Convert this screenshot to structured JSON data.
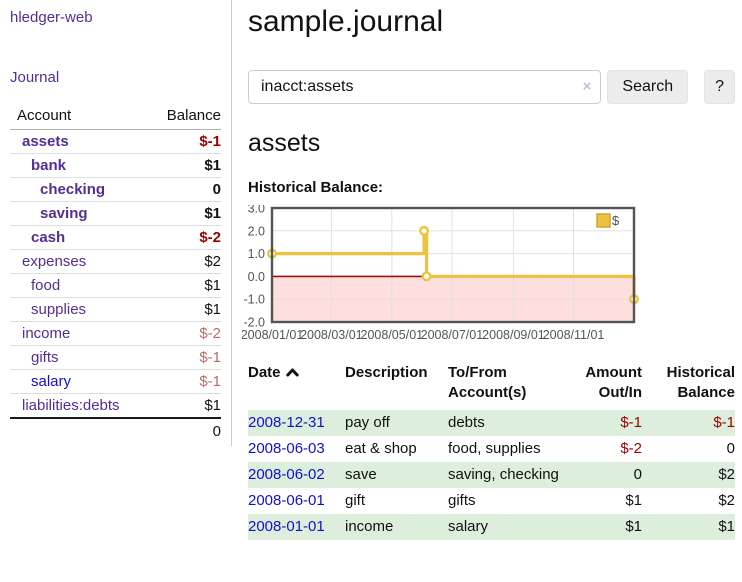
{
  "app": {
    "brand": "hledger-web",
    "nav_journal": "Journal"
  },
  "colors": {
    "link_purple": "#552e91",
    "link_blue": "#1111cc",
    "negative_strong": "#990000",
    "negative_soft": "#b86b6b",
    "row_highlight_green": "#ddeedd",
    "chart_line_yellow": "#edc240",
    "chart_negative_fill": "#ffdede",
    "chart_zero_line": "#990000"
  },
  "sidebar": {
    "headers": {
      "account": "Account",
      "balance": "Balance"
    },
    "accounts": [
      {
        "name": "assets",
        "balance": "$-1"
      },
      {
        "name": "bank",
        "balance": "$1"
      },
      {
        "name": "checking",
        "balance": "0"
      },
      {
        "name": "saving",
        "balance": "$1"
      },
      {
        "name": "cash",
        "balance": "$-2"
      },
      {
        "name": "expenses",
        "balance": "$2"
      },
      {
        "name": "food",
        "balance": "$1"
      },
      {
        "name": "supplies",
        "balance": "$1"
      },
      {
        "name": "income",
        "balance": "$-2"
      },
      {
        "name": "gifts",
        "balance": "$-1"
      },
      {
        "name": "salary",
        "balance": "$-1"
      },
      {
        "name": "liabilities:debts",
        "balance": "$1"
      }
    ],
    "total": "0"
  },
  "header": {
    "title": "sample.journal"
  },
  "search": {
    "value": "inacct:assets",
    "clear_icon": "×",
    "button": "Search",
    "help_button": "?"
  },
  "account_page": {
    "heading": "assets",
    "chart_label": "Historical Balance:"
  },
  "chart_data": {
    "type": "line",
    "title": "Historical Balance:",
    "ylim": [
      -2,
      3
    ],
    "grid": true,
    "legend_position": "top-right",
    "border_color": "#545454",
    "negative_region_color": "#ffdede",
    "zero_line_color": "#991111",
    "y_ticks": [
      {
        "label": "3.0",
        "v": 3
      },
      {
        "label": "2.0",
        "v": 2
      },
      {
        "label": "1.0",
        "v": 1
      },
      {
        "label": "0.0",
        "v": 0
      },
      {
        "label": "-1.0",
        "v": -1
      },
      {
        "label": "-2.0",
        "v": -2
      }
    ],
    "x_ticks": [
      {
        "label": "2008/01/01",
        "pos": 0.0
      },
      {
        "label": "2008/03/01",
        "pos": 0.164
      },
      {
        "label": "2008/05/01",
        "pos": 0.331
      },
      {
        "label": "2008/07/01",
        "pos": 0.497
      },
      {
        "label": "2008/09/01",
        "pos": 0.667
      },
      {
        "label": "2008/11/01",
        "pos": 0.833
      }
    ],
    "series": [
      {
        "name": "$",
        "color": "#edc240",
        "step": true,
        "points": [
          {
            "date": "2008-01-01",
            "x": 0.0,
            "y": 1
          },
          {
            "date": "2008-06-01",
            "x": 0.42,
            "y": 2
          },
          {
            "date": "2008-06-03",
            "x": 0.427,
            "y": 0
          },
          {
            "date": "2008-12-31",
            "x": 1.0,
            "y": -1
          }
        ]
      }
    ]
  },
  "register": {
    "headers": {
      "date": "Date",
      "description": "Description",
      "accounts": "To/From Account(s)",
      "amount": "Amount Out/In",
      "balance": "Historical Balance"
    },
    "rows": [
      {
        "date": "2008-12-31",
        "description": "pay off",
        "accounts": "debts",
        "amount": "$-1",
        "balance": "$-1"
      },
      {
        "date": "2008-06-03",
        "description": "eat & shop",
        "accounts": "food, supplies",
        "amount": "$-2",
        "balance": "0"
      },
      {
        "date": "2008-06-02",
        "description": "save",
        "accounts": "saving, checking",
        "amount": "0",
        "balance": "$2"
      },
      {
        "date": "2008-06-01",
        "description": "gift",
        "accounts": "gifts",
        "amount": "$1",
        "balance": "$2"
      },
      {
        "date": "2008-01-01",
        "description": "income",
        "accounts": "salary",
        "amount": "$1",
        "balance": "$1"
      }
    ]
  }
}
